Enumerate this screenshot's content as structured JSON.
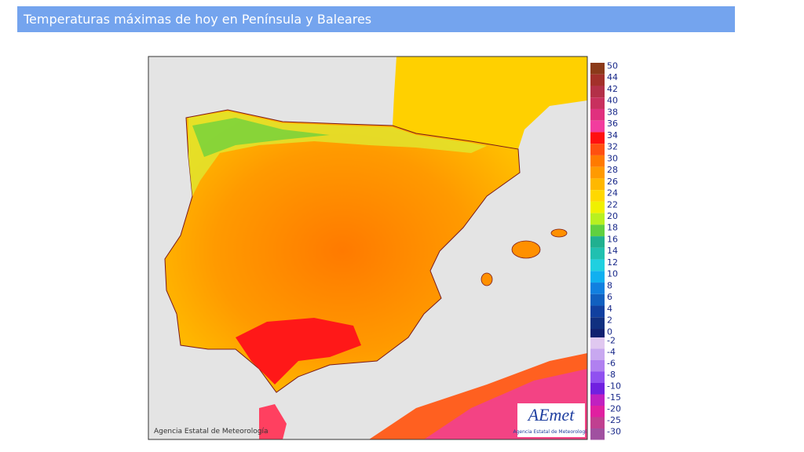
{
  "header": {
    "title": "Temperaturas máximas de hoy en Península y Baleares"
  },
  "legend": {
    "items": [
      {
        "label": "50",
        "color": "#8b3a1a"
      },
      {
        "label": "44",
        "color": "#a3302a"
      },
      {
        "label": "42",
        "color": "#b33048"
      },
      {
        "label": "40",
        "color": "#c8305e"
      },
      {
        "label": "38",
        "color": "#e0307e"
      },
      {
        "label": "36",
        "color": "#f23c9e"
      },
      {
        "label": "34",
        "color": "#ff1010"
      },
      {
        "label": "32",
        "color": "#ff5010"
      },
      {
        "label": "30",
        "color": "#ff7a00"
      },
      {
        "label": "28",
        "color": "#ff9a00"
      },
      {
        "label": "26",
        "color": "#ffb800"
      },
      {
        "label": "24",
        "color": "#ffd800"
      },
      {
        "label": "22",
        "color": "#f0f000"
      },
      {
        "label": "20",
        "color": "#b8f020"
      },
      {
        "label": "18",
        "color": "#60d040"
      },
      {
        "label": "16",
        "color": "#20b090"
      },
      {
        "label": "14",
        "color": "#20c0b0"
      },
      {
        "label": "12",
        "color": "#20d0e0"
      },
      {
        "label": "10",
        "color": "#10b0f0"
      },
      {
        "label": "8",
        "color": "#1080e0"
      },
      {
        "label": "6",
        "color": "#1060c0"
      },
      {
        "label": "4",
        "color": "#1040a0"
      },
      {
        "label": "2",
        "color": "#103080"
      },
      {
        "label": "0",
        "color": "#102070"
      },
      {
        "label": "-2",
        "color": "#e0c8f0"
      },
      {
        "label": "-4",
        "color": "#c8a8f0"
      },
      {
        "label": "-6",
        "color": "#b080f0"
      },
      {
        "label": "-8",
        "color": "#9050f0"
      },
      {
        "label": "-10",
        "color": "#7020e0"
      },
      {
        "label": "-15",
        "color": "#c020c0"
      },
      {
        "label": "-20",
        "color": "#e020a0"
      },
      {
        "label": "-25",
        "color": "#c04090"
      },
      {
        "label": "-30",
        "color": "#a050a0"
      }
    ]
  },
  "map": {
    "copyright": "Agencia Estatal de Meteorología",
    "logo": "AEmet",
    "logo_caption": "Agencia Estatal de Meteorología"
  }
}
